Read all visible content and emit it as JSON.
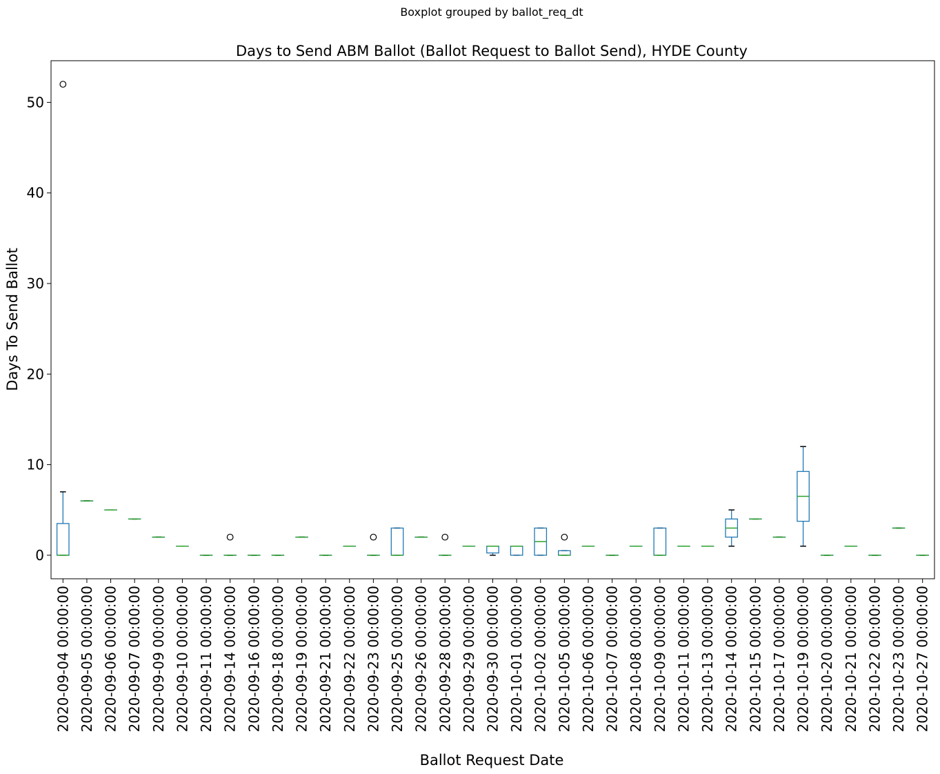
{
  "chart_data": {
    "type": "boxplot",
    "suptitle": "Boxplot grouped by ballot_req_dt",
    "title": "Days to Send ABM Ballot (Ballot Request to Ballot Send), HYDE County",
    "xlabel": "Ballot Request Date",
    "ylabel": "Days To Send Ballot",
    "ylim": [
      -2.6,
      54.6
    ],
    "yticks": [
      0,
      10,
      20,
      30,
      40,
      50
    ],
    "grid": false,
    "colors": {
      "box": "#1f77b4",
      "median": "#2ca02c",
      "whisker": "#1f77b4",
      "cap": "#000000",
      "flier": "#000000"
    },
    "categories": [
      "2020-09-04 00:00:00",
      "2020-09-05 00:00:00",
      "2020-09-06 00:00:00",
      "2020-09-07 00:00:00",
      "2020-09-09 00:00:00",
      "2020-09-10 00:00:00",
      "2020-09-11 00:00:00",
      "2020-09-14 00:00:00",
      "2020-09-16 00:00:00",
      "2020-09-18 00:00:00",
      "2020-09-19 00:00:00",
      "2020-09-21 00:00:00",
      "2020-09-22 00:00:00",
      "2020-09-23 00:00:00",
      "2020-09-25 00:00:00",
      "2020-09-26 00:00:00",
      "2020-09-28 00:00:00",
      "2020-09-29 00:00:00",
      "2020-09-30 00:00:00",
      "2020-10-01 00:00:00",
      "2020-10-02 00:00:00",
      "2020-10-05 00:00:00",
      "2020-10-06 00:00:00",
      "2020-10-07 00:00:00",
      "2020-10-08 00:00:00",
      "2020-10-09 00:00:00",
      "2020-10-11 00:00:00",
      "2020-10-13 00:00:00",
      "2020-10-14 00:00:00",
      "2020-10-15 00:00:00",
      "2020-10-17 00:00:00",
      "2020-10-19 00:00:00",
      "2020-10-20 00:00:00",
      "2020-10-21 00:00:00",
      "2020-10-22 00:00:00",
      "2020-10-23 00:00:00",
      "2020-10-27 00:00:00"
    ],
    "boxes": [
      {
        "min": 0,
        "q1": 0,
        "median": 0,
        "q3": 3.5,
        "max": 7,
        "fliers": [
          52
        ]
      },
      {
        "min": 6,
        "q1": 6,
        "median": 6,
        "q3": 6,
        "max": 6,
        "fliers": []
      },
      {
        "min": 5,
        "q1": 5,
        "median": 5,
        "q3": 5,
        "max": 5,
        "fliers": []
      },
      {
        "min": 4,
        "q1": 4,
        "median": 4,
        "q3": 4,
        "max": 4,
        "fliers": []
      },
      {
        "min": 2,
        "q1": 2,
        "median": 2,
        "q3": 2,
        "max": 2,
        "fliers": []
      },
      {
        "min": 1,
        "q1": 1,
        "median": 1,
        "q3": 1,
        "max": 1,
        "fliers": []
      },
      {
        "min": 0,
        "q1": 0,
        "median": 0,
        "q3": 0,
        "max": 0,
        "fliers": []
      },
      {
        "min": 0,
        "q1": 0,
        "median": 0,
        "q3": 0,
        "max": 0,
        "fliers": [
          2
        ]
      },
      {
        "min": 0,
        "q1": 0,
        "median": 0,
        "q3": 0,
        "max": 0,
        "fliers": []
      },
      {
        "min": 0,
        "q1": 0,
        "median": 0,
        "q3": 0,
        "max": 0,
        "fliers": []
      },
      {
        "min": 2,
        "q1": 2,
        "median": 2,
        "q3": 2,
        "max": 2,
        "fliers": []
      },
      {
        "min": 0,
        "q1": 0,
        "median": 0,
        "q3": 0,
        "max": 0,
        "fliers": []
      },
      {
        "min": 1,
        "q1": 1,
        "median": 1,
        "q3": 1,
        "max": 1,
        "fliers": []
      },
      {
        "min": 0,
        "q1": 0,
        "median": 0,
        "q3": 0,
        "max": 0,
        "fliers": [
          2
        ]
      },
      {
        "min": 0,
        "q1": 0,
        "median": 0,
        "q3": 3,
        "max": 3,
        "fliers": []
      },
      {
        "min": 2,
        "q1": 2,
        "median": 2,
        "q3": 2,
        "max": 2,
        "fliers": []
      },
      {
        "min": 0,
        "q1": 0,
        "median": 0,
        "q3": 0,
        "max": 0,
        "fliers": [
          2
        ]
      },
      {
        "min": 1,
        "q1": 1,
        "median": 1,
        "q3": 1,
        "max": 1,
        "fliers": []
      },
      {
        "min": 0,
        "q1": 0.25,
        "median": 1,
        "q3": 1,
        "max": 1,
        "fliers": []
      },
      {
        "min": 0,
        "q1": 0,
        "median": 1,
        "q3": 1,
        "max": 1,
        "fliers": []
      },
      {
        "min": 0,
        "q1": 0,
        "median": 1.5,
        "q3": 3,
        "max": 3,
        "fliers": []
      },
      {
        "min": 0,
        "q1": 0,
        "median": 0,
        "q3": 0.5,
        "max": 0.5,
        "fliers": [
          2
        ]
      },
      {
        "min": 1,
        "q1": 1,
        "median": 1,
        "q3": 1,
        "max": 1,
        "fliers": []
      },
      {
        "min": 0,
        "q1": 0,
        "median": 0,
        "q3": 0,
        "max": 0,
        "fliers": []
      },
      {
        "min": 1,
        "q1": 1,
        "median": 1,
        "q3": 1,
        "max": 1,
        "fliers": []
      },
      {
        "min": 0,
        "q1": 0,
        "median": 0,
        "q3": 3,
        "max": 3,
        "fliers": []
      },
      {
        "min": 1,
        "q1": 1,
        "median": 1,
        "q3": 1,
        "max": 1,
        "fliers": []
      },
      {
        "min": 1,
        "q1": 1,
        "median": 1,
        "q3": 1,
        "max": 1,
        "fliers": []
      },
      {
        "min": 1,
        "q1": 2,
        "median": 3,
        "q3": 4,
        "max": 5,
        "fliers": []
      },
      {
        "min": 4,
        "q1": 4,
        "median": 4,
        "q3": 4,
        "max": 4,
        "fliers": []
      },
      {
        "min": 2,
        "q1": 2,
        "median": 2,
        "q3": 2,
        "max": 2,
        "fliers": []
      },
      {
        "min": 1,
        "q1": 3.75,
        "median": 6.5,
        "q3": 9.25,
        "max": 12,
        "fliers": []
      },
      {
        "min": 0,
        "q1": 0,
        "median": 0,
        "q3": 0,
        "max": 0,
        "fliers": []
      },
      {
        "min": 1,
        "q1": 1,
        "median": 1,
        "q3": 1,
        "max": 1,
        "fliers": []
      },
      {
        "min": 0,
        "q1": 0,
        "median": 0,
        "q3": 0,
        "max": 0,
        "fliers": []
      },
      {
        "min": 3,
        "q1": 3,
        "median": 3,
        "q3": 3,
        "max": 3,
        "fliers": []
      },
      {
        "min": 0,
        "q1": 0,
        "median": 0,
        "q3": 0,
        "max": 0,
        "fliers": []
      }
    ]
  }
}
